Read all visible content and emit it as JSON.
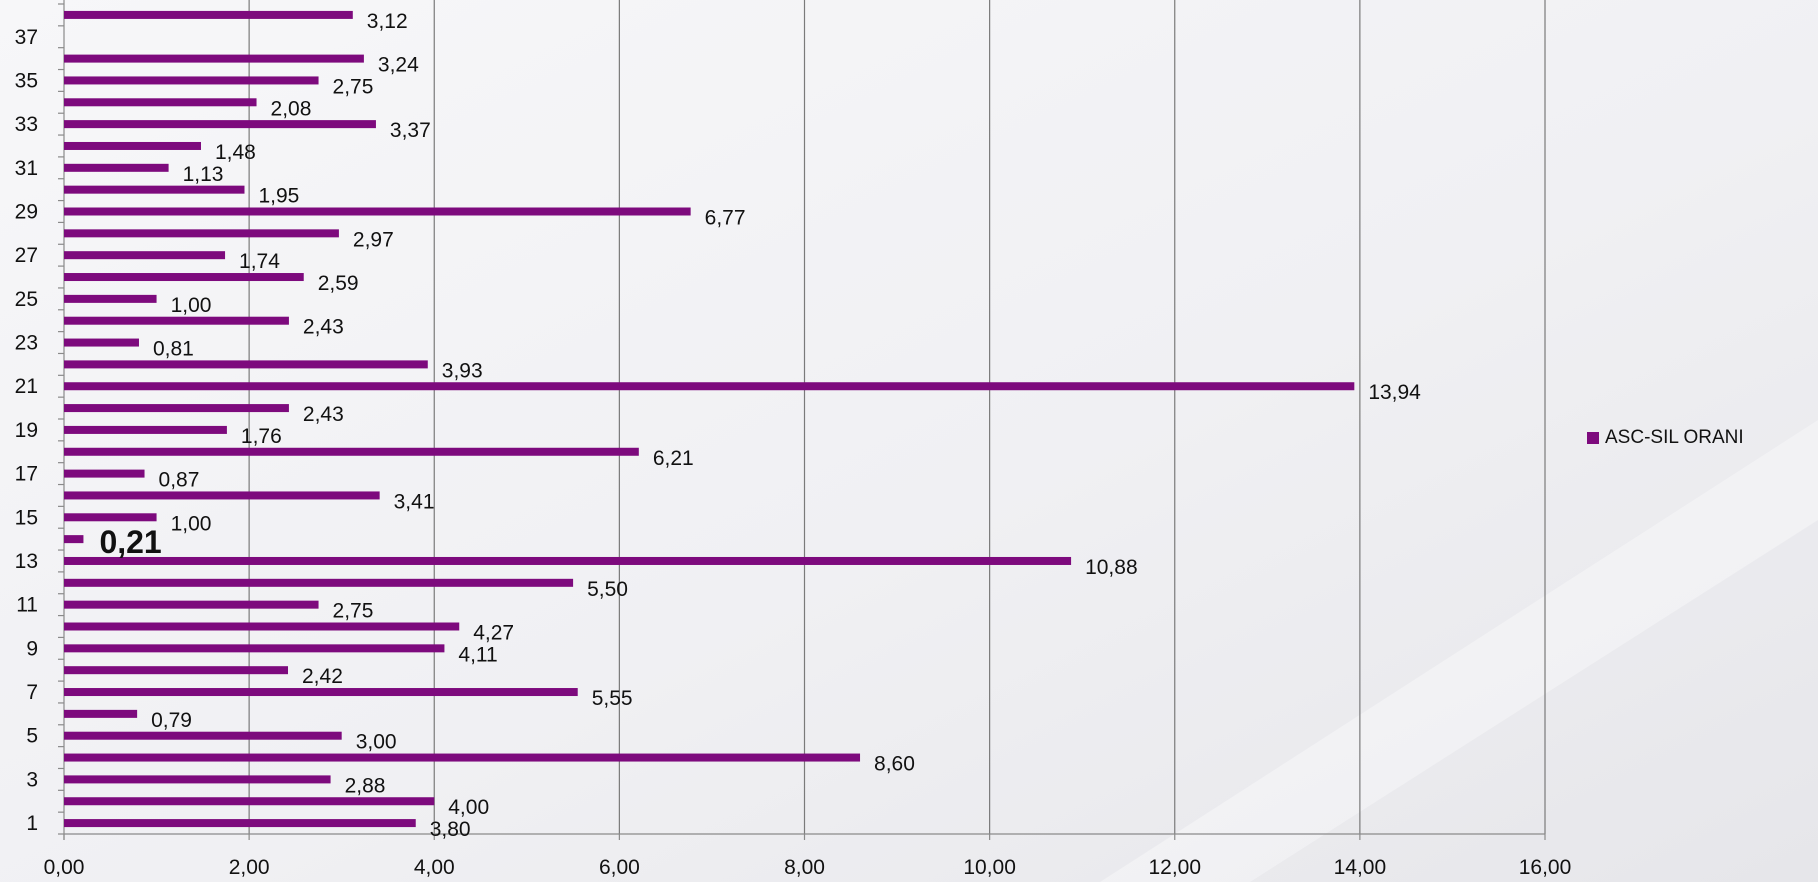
{
  "chart_data": {
    "type": "bar",
    "orientation": "horizontal",
    "categories": [
      "1",
      "2",
      "3",
      "4",
      "5",
      "6",
      "7",
      "8",
      "9",
      "10",
      "11",
      "12",
      "13",
      "14",
      "15",
      "16",
      "17",
      "18",
      "19",
      "20",
      "21",
      "22",
      "23",
      "24",
      "25",
      "26",
      "27",
      "28",
      "29",
      "30",
      "31",
      "32",
      "33",
      "34",
      "35",
      "36",
      "37",
      "38"
    ],
    "y_tick_labels": [
      "1",
      "3",
      "5",
      "7",
      "9",
      "11",
      "13",
      "15",
      "17",
      "19",
      "21",
      "23",
      "25",
      "27",
      "29",
      "31",
      "33",
      "35",
      "37"
    ],
    "series": [
      {
        "name": "ASC-SIL ORANI",
        "values": [
          3.8,
          4.0,
          2.88,
          8.6,
          3.0,
          0.79,
          5.55,
          2.42,
          4.11,
          4.27,
          2.75,
          5.5,
          10.88,
          0.21,
          1.0,
          3.41,
          0.87,
          6.21,
          1.76,
          2.43,
          13.94,
          3.93,
          0.81,
          2.43,
          1.0,
          2.59,
          1.74,
          2.97,
          6.77,
          1.95,
          1.13,
          1.48,
          3.37,
          2.08,
          2.75,
          3.24,
          null,
          3.12
        ],
        "data_labels": [
          "3,80",
          "4,00",
          "2,88",
          "8,60",
          "3,00",
          "0,79",
          "5,55",
          "2,42",
          "4,11",
          "4,27",
          "2,75",
          "5,50",
          "10,88",
          "0,21",
          "1,00",
          "3,41",
          "0,87",
          "6,21",
          "1,76",
          "2,43",
          "13,94",
          "3,93",
          "0,81",
          "2,43",
          "1,00",
          "2,59",
          "1,74",
          "2,97",
          "6,77",
          "1,95",
          "1,13",
          "1,48",
          "3,37",
          "2,08",
          "2,75",
          "3,24",
          "",
          "3,12"
        ],
        "highlight_index": 13
      }
    ],
    "x_ticks": [
      0,
      2,
      4,
      6,
      8,
      10,
      12,
      14,
      16
    ],
    "x_tick_labels": [
      "0,00",
      "2,00",
      "4,00",
      "6,00",
      "8,00",
      "10,00",
      "12,00",
      "14,00",
      "16,00"
    ],
    "xlim": [
      0,
      16
    ],
    "grid": "vertical",
    "legend_position": "right",
    "title": "",
    "xlabel": "",
    "ylabel": ""
  },
  "colors": {
    "bar": "#7d0a7d",
    "gridline": "#7a7a7a",
    "axis": "#8a8a8a",
    "text": "#111111"
  },
  "legend": {
    "label": "ASC-SIL ORANI"
  }
}
